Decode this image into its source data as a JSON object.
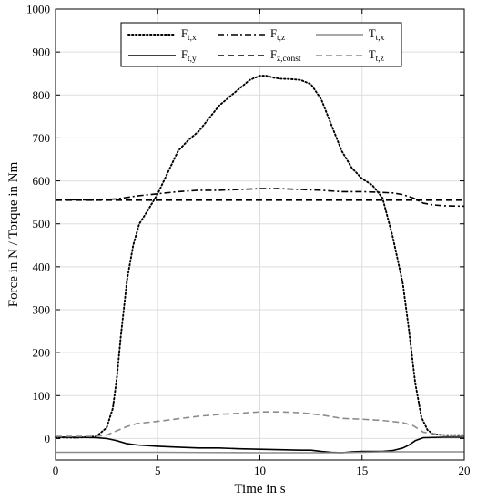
{
  "chart_data": {
    "type": "line",
    "xlabel": "Time in s",
    "ylabel": "Force in N / Torque in Nm",
    "xlim": [
      0,
      20
    ],
    "ylim": [
      -50,
      1000
    ],
    "xticks": [
      0,
      5,
      10,
      15,
      20
    ],
    "yticks": [
      0,
      100,
      200,
      300,
      400,
      500,
      600,
      700,
      800,
      900,
      1000
    ],
    "grid": true,
    "legend_position": "top-center",
    "series": [
      {
        "name": "F_t,x",
        "base": "F",
        "sub": "t,x",
        "style": "dotted",
        "color": "#000000",
        "x": [
          0,
          1,
          2,
          2.5,
          2.8,
          3,
          3.2,
          3.5,
          3.8,
          4.1,
          4.5,
          5,
          5.5,
          6,
          6.5,
          7,
          7.5,
          8,
          8.5,
          9,
          9.5,
          10,
          10.3,
          10.7,
          11,
          11.5,
          12,
          12.5,
          13,
          13.5,
          14,
          14.5,
          15,
          15.5,
          16,
          16.5,
          17,
          17.3,
          17.6,
          17.9,
          18.2,
          18.5,
          19,
          20
        ],
        "y": [
          3,
          2,
          5,
          25,
          70,
          140,
          240,
          370,
          450,
          500,
          530,
          570,
          620,
          670,
          695,
          715,
          745,
          775,
          795,
          815,
          835,
          845,
          845,
          840,
          838,
          837,
          835,
          825,
          790,
          730,
          670,
          630,
          605,
          590,
          560,
          470,
          360,
          250,
          130,
          50,
          20,
          10,
          8,
          8
        ]
      },
      {
        "name": "F_t,y",
        "base": "F",
        "sub": "t,y",
        "style": "solid",
        "color": "#000000",
        "x": [
          0,
          1,
          2,
          2.5,
          3,
          3.5,
          4,
          5,
          6,
          7,
          8,
          9,
          10,
          11,
          12,
          12.5,
          13,
          13.5,
          14,
          14.5,
          15,
          16,
          16.5,
          17,
          17.3,
          17.6,
          18,
          19,
          20
        ],
        "y": [
          3,
          3,
          2,
          0,
          -5,
          -12,
          -15,
          -18,
          -20,
          -22,
          -22,
          -24,
          -25,
          -26,
          -27,
          -27,
          -30,
          -32,
          -33,
          -31,
          -30,
          -30,
          -28,
          -22,
          -15,
          -5,
          2,
          3,
          3
        ]
      },
      {
        "name": "F_t,z",
        "base": "F",
        "sub": "t,z",
        "style": "dashdot",
        "color": "#000000",
        "x": [
          0,
          1,
          2,
          3,
          4,
          5,
          6,
          7,
          8,
          9,
          10,
          11,
          12,
          13,
          14,
          15,
          16,
          16.5,
          17,
          17.5,
          18,
          18.5,
          19,
          20
        ],
        "y": [
          555,
          556,
          555,
          558,
          565,
          570,
          575,
          578,
          578,
          580,
          582,
          582,
          580,
          578,
          575,
          575,
          573,
          572,
          568,
          560,
          548,
          544,
          542,
          541
        ]
      },
      {
        "name": "F_z,const",
        "base": "F",
        "sub": "z,const",
        "style": "dashed",
        "color": "#000000",
        "x": [
          0,
          20
        ],
        "y": [
          555,
          555
        ]
      },
      {
        "name": "T_t,x",
        "base": "T",
        "sub": "t,x",
        "style": "solid",
        "color": "#8c8c8c",
        "x": [
          0,
          5,
          10,
          12.5,
          13,
          14,
          15,
          16,
          18,
          20
        ],
        "y": [
          -32,
          -32,
          -33,
          -33,
          -33,
          -33,
          -32,
          -31,
          -31,
          -31
        ]
      },
      {
        "name": "T_t,z",
        "base": "T",
        "sub": "t,z",
        "style": "dashed",
        "color": "#8c8c8c",
        "x": [
          0,
          1,
          2,
          2.5,
          3,
          3.5,
          4,
          5,
          6,
          7,
          8,
          9,
          10,
          11,
          12,
          13,
          14,
          15,
          16,
          17,
          17.5,
          18,
          19,
          20
        ],
        "y": [
          5,
          5,
          5,
          8,
          18,
          28,
          35,
          40,
          46,
          52,
          56,
          59,
          62,
          62,
          60,
          55,
          47,
          45,
          42,
          37,
          30,
          15,
          8,
          5
        ]
      }
    ]
  }
}
